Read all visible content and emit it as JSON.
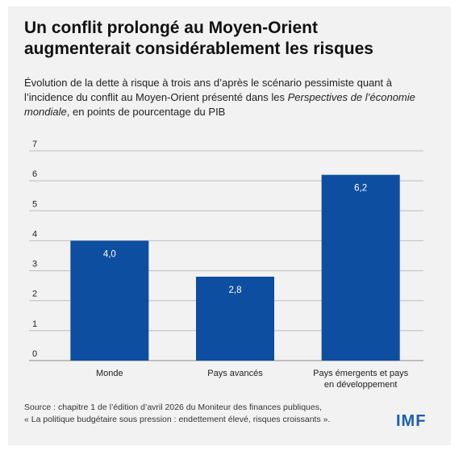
{
  "title_line1": "Un conflit prolongé au Moyen-Orient",
  "title_line2": "augmenterait considérablement les risques",
  "subtitle_part1": "Évolution de la dette à risque à trois ans d’après le scénario pessimiste quant à l’incidence du conflit au Moyen-Orient présenté dans les ",
  "subtitle_italic": "Perspectives de l’économie mondiale",
  "subtitle_part2": ", en points de pourcentage du PIB",
  "source_line1": "Source : chapitre 1 de l’édition d’avril 2026 du Moniteur des finances publiques,",
  "source_line2": "« La politique budgétaire sous pression : endettement élevé, risques croissants ».",
  "logo_text": "IMF",
  "colors": {
    "bar": "#0d4ea0",
    "grid": "#bdbdbd",
    "background": "#f2f2f2",
    "logo": "#1b5fae"
  },
  "chart_data": {
    "type": "bar",
    "categories": [
      "Monde",
      "Pays avancés",
      "Pays émergents et pays en développement"
    ],
    "category_label_lines": [
      [
        "Monde"
      ],
      [
        "Pays avancés"
      ],
      [
        "Pays émergents et pays",
        "en développement"
      ]
    ],
    "values": [
      4.0,
      2.8,
      6.2
    ],
    "value_labels": [
      "4,0",
      "2,8",
      "6,2"
    ],
    "ylim": [
      0,
      7
    ],
    "yticks": [
      0,
      1,
      2,
      3,
      4,
      5,
      6,
      7
    ],
    "grid": true,
    "legend": "none"
  }
}
